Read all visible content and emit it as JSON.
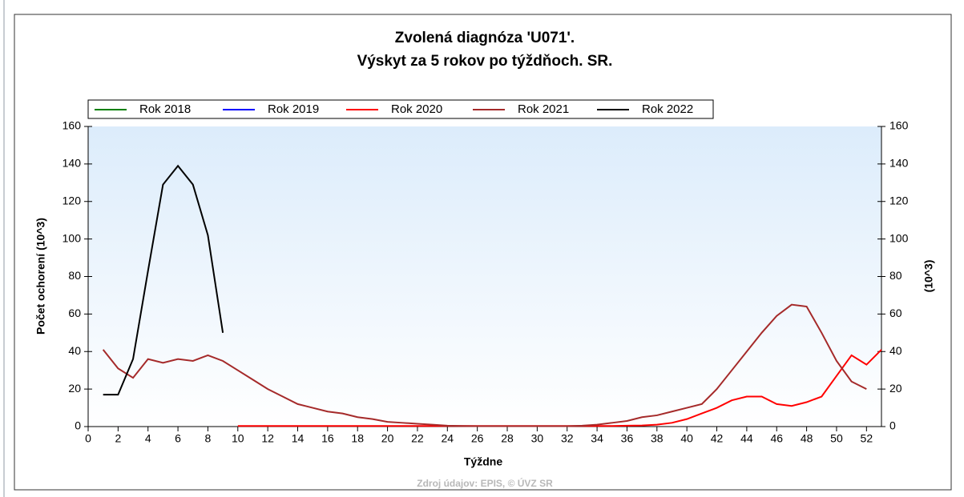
{
  "chart_data": {
    "type": "line",
    "title": "Zvolená diagnóza 'U071'.",
    "subtitle": "Výskyt za 5 rokov po týždňoch. SR.",
    "x_label": "Týždne",
    "y_label": "Počet ochorení (10^3)",
    "y2_label": "(10^3)",
    "source": "Zdroj údajov: EPIS, © ÚVZ SR",
    "x": [
      1,
      2,
      3,
      4,
      5,
      6,
      7,
      8,
      9,
      10,
      11,
      12,
      13,
      14,
      15,
      16,
      17,
      18,
      19,
      20,
      21,
      22,
      23,
      24,
      25,
      26,
      27,
      28,
      29,
      30,
      31,
      32,
      33,
      34,
      35,
      36,
      37,
      38,
      39,
      40,
      41,
      42,
      43,
      44,
      45,
      46,
      47,
      48,
      49,
      50,
      51,
      52,
      53
    ],
    "xlim": [
      0,
      53
    ],
    "xticks": [
      0,
      2,
      4,
      6,
      8,
      10,
      12,
      14,
      16,
      18,
      20,
      22,
      24,
      26,
      28,
      30,
      32,
      34,
      36,
      38,
      40,
      42,
      44,
      46,
      48,
      50,
      52
    ],
    "ylim": [
      0,
      160
    ],
    "yticks": [
      0,
      20,
      40,
      60,
      80,
      100,
      120,
      140,
      160
    ],
    "y2lim": [
      0,
      160
    ],
    "y2ticks": [
      0,
      20,
      40,
      60,
      80,
      100,
      120,
      140,
      160
    ],
    "legend": "top",
    "series": [
      {
        "name": "Rok 2018",
        "color": "#008000",
        "values": [
          null,
          null,
          null,
          null,
          null,
          null,
          null,
          null,
          null,
          null,
          null,
          null,
          null,
          null,
          null,
          null,
          null,
          null,
          null,
          null,
          null,
          null,
          null,
          null,
          null,
          null,
          null,
          null,
          null,
          null,
          null,
          null,
          null,
          null,
          null,
          null,
          null,
          null,
          null,
          null,
          null,
          null,
          null,
          null,
          null,
          null,
          null,
          null,
          null,
          null,
          null,
          null,
          null
        ]
      },
      {
        "name": "Rok 2019",
        "color": "#0000ff",
        "values": [
          null,
          null,
          null,
          null,
          null,
          null,
          null,
          null,
          null,
          null,
          null,
          null,
          null,
          null,
          null,
          null,
          null,
          null,
          null,
          null,
          null,
          null,
          null,
          null,
          null,
          null,
          null,
          null,
          null,
          null,
          null,
          null,
          null,
          null,
          null,
          null,
          null,
          null,
          null,
          null,
          null,
          null,
          null,
          null,
          null,
          null,
          null,
          null,
          null,
          null,
          null,
          null,
          null
        ]
      },
      {
        "name": "Rok 2020",
        "color": "#ff0000",
        "values": [
          null,
          null,
          null,
          null,
          null,
          null,
          null,
          null,
          null,
          0.3,
          0.3,
          0.3,
          0.3,
          0.3,
          0.3,
          0.3,
          0.3,
          0.3,
          0.3,
          0.3,
          0.3,
          0.3,
          0.3,
          0.3,
          0.3,
          0.3,
          0.3,
          0.3,
          0.3,
          0.3,
          0.3,
          0.3,
          0.3,
          0.3,
          0.3,
          0.5,
          0.6,
          1,
          2,
          4,
          7,
          10,
          14,
          16,
          16,
          12,
          11,
          13,
          16,
          27,
          38,
          33,
          41
        ]
      },
      {
        "name": "Rok 2021",
        "color": "#a52a2a",
        "values": [
          41,
          31,
          26,
          36,
          34,
          36,
          35,
          38,
          35,
          30,
          25,
          20,
          16,
          12,
          10,
          8,
          7,
          5,
          4,
          2.5,
          2,
          1.5,
          1,
          0.5,
          0.3,
          0.2,
          0.2,
          0.2,
          0.2,
          0.2,
          0.2,
          0.2,
          0.5,
          1,
          2,
          3,
          5,
          6,
          8,
          10,
          12,
          20,
          30,
          40,
          50,
          59,
          65,
          64,
          50,
          35,
          24,
          20,
          null
        ]
      },
      {
        "name": "Rok 2022",
        "color": "#000000",
        "values": [
          17,
          17,
          36,
          83,
          129,
          139,
          129,
          102,
          50,
          null,
          null,
          null,
          null,
          null,
          null,
          null,
          null,
          null,
          null,
          null,
          null,
          null,
          null,
          null,
          null,
          null,
          null,
          null,
          null,
          null,
          null,
          null,
          null,
          null,
          null,
          null,
          null,
          null,
          null,
          null,
          null,
          null,
          null,
          null,
          null,
          null,
          null,
          null,
          null,
          null,
          null,
          null,
          null
        ]
      }
    ]
  }
}
